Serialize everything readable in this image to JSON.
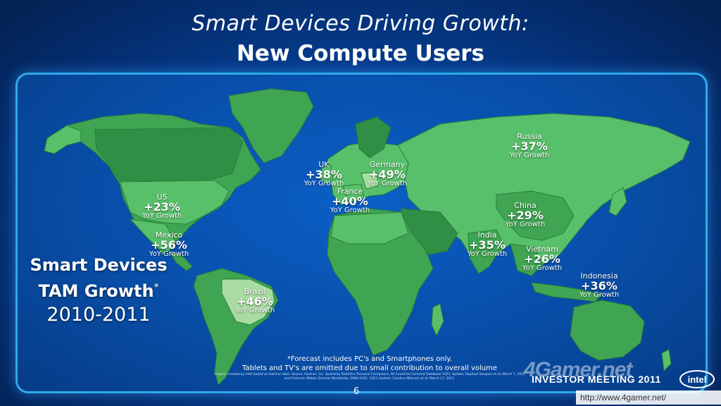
{
  "title": {
    "line1": "Smart Devices Driving Growth:",
    "line2": "New Compute Users"
  },
  "regions": [
    {
      "id": "us",
      "name": "US",
      "value": "+23%",
      "sub": "YoY Growth"
    },
    {
      "id": "mexico",
      "name": "Mexico",
      "value": "+56%",
      "sub": "YoY Growth"
    },
    {
      "id": "brazil",
      "name": "Brazil",
      "value": "+46%",
      "sub": "YoY Growth"
    },
    {
      "id": "uk",
      "name": "UK",
      "value": "+38%",
      "sub": "YoY Growth"
    },
    {
      "id": "germany",
      "name": "Germany",
      "value": "+49%",
      "sub": "YoY Growth"
    },
    {
      "id": "france",
      "name": "France",
      "value": "+40%",
      "sub": "YoY Growth"
    },
    {
      "id": "russia",
      "name": "Russia",
      "value": "+37%",
      "sub": "YoY Growth"
    },
    {
      "id": "china",
      "name": "China",
      "value": "+29%",
      "sub": "YoY Growth"
    },
    {
      "id": "india",
      "name": "India",
      "value": "+35%",
      "sub": "YoY Growth"
    },
    {
      "id": "vietnam",
      "name": "Vietnam",
      "value": "+26%",
      "sub": "YoY Growth"
    },
    {
      "id": "indonesia",
      "name": "Indonesia",
      "value": "+36%",
      "sub": "YoY Growth"
    }
  ],
  "left_block": {
    "line1": "Smart Devices",
    "line2": "TAM Growth",
    "line2_sup": "*",
    "line3": "2010-2011"
  },
  "footnote": {
    "line1": "*Forecast includes PC's and Smartphones only.",
    "line2": "Tablets and TV's are omitted due to small contribution to overall volume",
    "line3": "Graphic created by Intel based on Gartner data. Source: Gartner, Inc. Quarterly Statistics Personal Computers, All Countries Forecast Database 1Q11 Update; Raphael Vasquez et al, March 7, 2011 and Forecast: Mobile Devices Worldwide, 2008-2015, 1Q11 Update; Carolina Milanesi et al, March 17, 2011."
  },
  "page_number": "6",
  "event_label": "INVESTOR MEETING 2011",
  "logo_text": "intel",
  "watermark": {
    "brand": "4Gamer.net",
    "url": "http://www.4gamer.net/"
  },
  "colors": {
    "background": "#063f93",
    "frame_border": "#2fa9ea",
    "land_light": "#58c06a",
    "land_mid": "#3fa552",
    "land_dark": "#2a7f3c",
    "land_pale": "#a8dca0"
  },
  "icons": [
    "intel-logo"
  ]
}
